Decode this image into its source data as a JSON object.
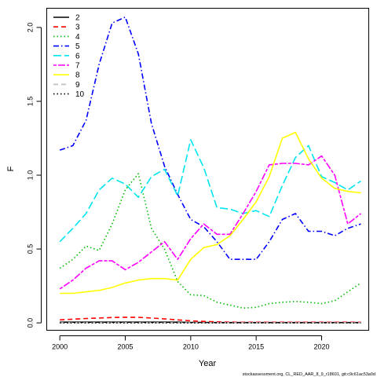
{
  "chart_data": {
    "type": "line",
    "title": "",
    "xlabel": "Year",
    "ylabel": "F",
    "xlim": [
      1999.0,
      2023.6
    ],
    "ylim": [
      -0.05,
      2.13
    ],
    "x_ticks": [
      2000,
      2005,
      2010,
      2015,
      2020
    ],
    "y_ticks": [
      0.0,
      0.5,
      1.0,
      1.5,
      2.0
    ],
    "y_tick_labels": [
      "0.0",
      "0.5",
      "1.0",
      "1.5",
      "2.0"
    ],
    "grid": false,
    "legend_position": "top-left",
    "x": [
      2000,
      2001,
      2002,
      2003,
      2004,
      2005,
      2006,
      2007,
      2008,
      2009,
      2010,
      2011,
      2012,
      2013,
      2014,
      2015,
      2016,
      2017,
      2018,
      2019,
      2020,
      2021,
      2022,
      2023
    ],
    "series": [
      {
        "name": "2",
        "color": "#000000",
        "dash": "solid",
        "values": [
          0.005,
          0.005,
          0.005,
          0.005,
          0.005,
          0.005,
          0.005,
          0.005,
          0.005,
          0.005,
          0.003,
          0.003,
          0.002,
          0.002,
          0.002,
          0.002,
          0.002,
          0.002,
          0.002,
          0.002,
          0.002,
          0.002,
          0.002,
          0.002
        ]
      },
      {
        "name": "3",
        "color": "#ff0000",
        "dash": "dash",
        "values": [
          0.02,
          0.025,
          0.03,
          0.033,
          0.036,
          0.038,
          0.037,
          0.033,
          0.027,
          0.02,
          0.014,
          0.01,
          0.007,
          0.005,
          0.004,
          0.004,
          0.004,
          0.004,
          0.004,
          0.004,
          0.004,
          0.004,
          0.004,
          0.004
        ]
      },
      {
        "name": "4",
        "color": "#00bb00",
        "dash": "dot",
        "values": [
          0.37,
          0.43,
          0.52,
          0.49,
          0.67,
          0.9,
          1.01,
          0.64,
          0.5,
          0.28,
          0.19,
          0.185,
          0.14,
          0.12,
          0.1,
          0.105,
          0.13,
          0.14,
          0.145,
          0.14,
          0.13,
          0.15,
          0.21,
          0.27
        ]
      },
      {
        "name": "5",
        "color": "#0000ff",
        "dash": "dashdot",
        "values": [
          1.17,
          1.2,
          1.37,
          1.75,
          2.03,
          2.07,
          1.82,
          1.35,
          1.06,
          0.87,
          0.7,
          0.65,
          0.55,
          0.43,
          0.43,
          0.43,
          0.55,
          0.7,
          0.74,
          0.62,
          0.62,
          0.59,
          0.64,
          0.67
        ]
      },
      {
        "name": "6",
        "color": "#00e5ee",
        "dash": "longdash",
        "values": [
          0.55,
          0.64,
          0.74,
          0.9,
          0.98,
          0.94,
          0.85,
          0.99,
          1.04,
          0.86,
          1.24,
          1.05,
          0.78,
          0.77,
          0.74,
          0.76,
          0.72,
          0.93,
          1.12,
          1.2,
          0.99,
          0.95,
          0.9,
          0.96
        ]
      },
      {
        "name": "7",
        "color": "#ff00ff",
        "dash": "twodash",
        "values": [
          0.23,
          0.29,
          0.37,
          0.42,
          0.42,
          0.36,
          0.41,
          0.48,
          0.55,
          0.43,
          0.57,
          0.67,
          0.6,
          0.6,
          0.74,
          0.89,
          1.07,
          1.08,
          1.08,
          1.07,
          1.13,
          1.0,
          0.67,
          0.74
        ]
      },
      {
        "name": "8",
        "color": "#ffff00",
        "dash": "solid",
        "values": [
          0.2,
          0.2,
          0.21,
          0.22,
          0.24,
          0.27,
          0.29,
          0.3,
          0.3,
          0.29,
          0.43,
          0.51,
          0.53,
          0.59,
          0.7,
          0.82,
          0.99,
          1.25,
          1.29,
          1.11,
          0.98,
          0.91,
          0.89,
          0.88
        ]
      },
      {
        "name": "9",
        "color": "#bebebe",
        "dash": "dash",
        "values": [
          0.001,
          0.001,
          0.001,
          0.001,
          0.001,
          0.001,
          0.001,
          0.001,
          0.001,
          0.001,
          0.001,
          0.001,
          0.001,
          0.001,
          0.001,
          0.001,
          0.001,
          0.001,
          0.001,
          0.001,
          0.001,
          0.001,
          0.001,
          0.001
        ]
      },
      {
        "name": "10",
        "color": "#000000",
        "dash": "dot",
        "values": [
          0.0,
          0.0,
          0.0,
          0.0,
          0.0,
          0.0,
          0.0,
          0.0,
          0.0,
          0.0,
          0.0,
          0.0,
          0.0,
          0.0,
          0.0,
          0.0,
          0.0,
          0.0,
          0.0,
          0.0,
          0.0,
          0.0,
          0.0,
          0.0
        ]
      }
    ]
  },
  "footer": {
    "source_text": "stockassessment.org, CL_RED_AAR_8_9_r18601, git:c9c61ac53a0d"
  }
}
